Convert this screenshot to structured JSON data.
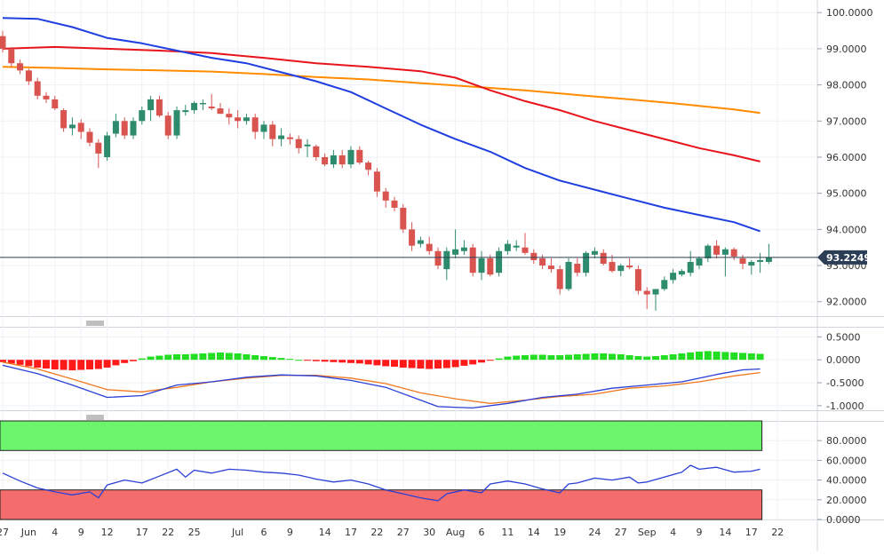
{
  "price_panel": {
    "y_ticks": [
      "100.0000",
      "99.0000",
      "98.0000",
      "97.0000",
      "96.0000",
      "95.0000",
      "94.0000",
      "93.0000",
      "92.0000"
    ],
    "current_price": "93.2249"
  },
  "macd_panel": {
    "y_ticks": [
      "0.5000",
      "0.0000",
      "-0.5000",
      "-1.0000"
    ]
  },
  "rsi_panel": {
    "y_ticks": [
      "80.0000",
      "60.0000",
      "40.0000",
      "20.0000",
      "0.0000"
    ]
  },
  "x_axis": {
    "labels": [
      "27",
      "Jun",
      "4",
      "9",
      "12",
      "17",
      "22",
      "25",
      "Jul",
      "6",
      "9",
      "14",
      "17",
      "22",
      "27",
      "30",
      "Aug",
      "6",
      "11",
      "14",
      "19",
      "24",
      "27",
      "Sep",
      "4",
      "9",
      "14",
      "17",
      "22"
    ]
  },
  "colors": {
    "bull": "#2e8b6e",
    "bear": "#d9534f",
    "sma50": "#1f3fe0",
    "sma100": "#e8141b",
    "sma200": "#ff8c00",
    "macd_line": "#2b3fd6",
    "signal_line": "#f07820",
    "hist_pos": "#22dd22",
    "hist_neg": "#ff1a1a",
    "rsi_line": "#2b3fd6",
    "overbought_fill": "#6cf56c",
    "oversold_fill": "#f56c6c"
  },
  "chart_data": [
    {
      "type": "candlestick",
      "name": "price",
      "ylim": [
        91.6,
        100.35
      ],
      "x_labels": [
        "27",
        "Jun",
        "4",
        "9",
        "12",
        "17",
        "22",
        "25",
        "Jul",
        "6",
        "9",
        "14",
        "17",
        "22",
        "27",
        "30",
        "Aug",
        "6",
        "11",
        "14",
        "19",
        "24",
        "27",
        "Sep",
        "4",
        "9",
        "14",
        "17",
        "22"
      ],
      "ohlc": [
        [
          99.35,
          99.5,
          98.9,
          99.0
        ],
        [
          99.0,
          99.05,
          98.5,
          98.6
        ],
        [
          98.6,
          98.7,
          98.3,
          98.4
        ],
        [
          98.4,
          98.45,
          98.0,
          98.1
        ],
        [
          98.1,
          98.2,
          97.6,
          97.7
        ],
        [
          97.7,
          97.8,
          97.5,
          97.6
        ],
        [
          97.6,
          97.7,
          97.3,
          97.35
        ],
        [
          97.3,
          97.35,
          96.7,
          96.8
        ],
        [
          96.8,
          97.1,
          96.6,
          96.9
        ],
        [
          96.95,
          97.05,
          96.5,
          96.7
        ],
        [
          96.7,
          96.8,
          96.3,
          96.4
        ],
        [
          96.4,
          96.5,
          95.7,
          96.1
        ],
        [
          96.0,
          96.7,
          95.9,
          96.6
        ],
        [
          96.65,
          97.2,
          96.55,
          97.0
        ],
        [
          97.0,
          97.1,
          96.5,
          96.6
        ],
        [
          96.6,
          97.1,
          96.5,
          97.0
        ],
        [
          97.0,
          97.4,
          96.9,
          97.3
        ],
        [
          97.3,
          97.7,
          97.0,
          97.6
        ],
        [
          97.6,
          97.7,
          97.1,
          97.15
        ],
        [
          97.15,
          97.25,
          96.5,
          96.6
        ],
        [
          96.6,
          97.4,
          96.5,
          97.3
        ],
        [
          97.25,
          97.45,
          97.15,
          97.3
        ],
        [
          97.3,
          97.55,
          97.2,
          97.5
        ],
        [
          97.5,
          97.6,
          97.3,
          97.5
        ],
        [
          97.4,
          97.75,
          97.3,
          97.35
        ],
        [
          97.35,
          97.5,
          97.2,
          97.2
        ],
        [
          97.2,
          97.35,
          96.9,
          97.1
        ],
        [
          97.1,
          97.3,
          96.8,
          97.0
        ],
        [
          97.0,
          97.2,
          96.9,
          97.1
        ],
        [
          97.1,
          97.2,
          96.5,
          96.7
        ],
        [
          96.7,
          97.0,
          96.5,
          96.9
        ],
        [
          96.9,
          97.0,
          96.3,
          96.5
        ],
        [
          96.5,
          96.8,
          96.3,
          96.6
        ],
        [
          96.55,
          96.65,
          96.35,
          96.5
        ],
        [
          96.5,
          96.6,
          96.1,
          96.25
        ],
        [
          96.3,
          96.5,
          96.0,
          96.35
        ],
        [
          96.3,
          96.35,
          95.9,
          96.0
        ],
        [
          96.0,
          96.1,
          95.75,
          95.8
        ],
        [
          95.8,
          96.2,
          95.7,
          96.05
        ],
        [
          96.05,
          96.2,
          95.7,
          95.8
        ],
        [
          95.8,
          96.3,
          95.7,
          96.2
        ],
        [
          96.2,
          96.3,
          95.8,
          95.85
        ],
        [
          95.85,
          95.9,
          95.5,
          95.65
        ],
        [
          95.6,
          95.7,
          94.9,
          95.05
        ],
        [
          95.05,
          95.15,
          94.6,
          94.8
        ],
        [
          94.8,
          94.9,
          94.5,
          94.6
        ],
        [
          94.6,
          94.7,
          93.9,
          94.0
        ],
        [
          94.0,
          94.2,
          93.4,
          93.55
        ],
        [
          93.6,
          93.8,
          93.5,
          93.7
        ],
        [
          93.6,
          93.8,
          93.3,
          93.4
        ],
        [
          93.4,
          93.5,
          92.9,
          93.0
        ],
        [
          92.9,
          93.5,
          92.6,
          93.4
        ],
        [
          93.3,
          94.0,
          93.2,
          93.45
        ],
        [
          93.4,
          93.7,
          93.3,
          93.5
        ],
        [
          93.5,
          93.6,
          92.7,
          92.8
        ],
        [
          92.8,
          93.4,
          92.6,
          93.2
        ],
        [
          93.2,
          93.3,
          92.7,
          92.75
        ],
        [
          92.8,
          93.5,
          92.7,
          93.4
        ],
        [
          93.4,
          93.7,
          93.3,
          93.6
        ],
        [
          93.5,
          93.7,
          93.4,
          93.55
        ],
        [
          93.5,
          93.9,
          93.3,
          93.35
        ],
        [
          93.35,
          93.45,
          93.05,
          93.15
        ],
        [
          93.2,
          93.3,
          92.9,
          93.0
        ],
        [
          93.0,
          93.2,
          92.8,
          92.9
        ],
        [
          92.9,
          93.0,
          92.2,
          92.35
        ],
        [
          92.35,
          93.2,
          92.3,
          93.1
        ],
        [
          93.05,
          93.2,
          92.7,
          92.8
        ],
        [
          92.8,
          93.4,
          92.7,
          93.35
        ],
        [
          93.3,
          93.5,
          93.2,
          93.4
        ],
        [
          93.35,
          93.45,
          93.0,
          93.05
        ],
        [
          93.1,
          93.3,
          92.8,
          92.85
        ],
        [
          92.85,
          93.05,
          92.7,
          93.0
        ],
        [
          93.0,
          93.2,
          92.9,
          92.95
        ],
        [
          92.9,
          93.0,
          92.2,
          92.3
        ],
        [
          92.3,
          92.4,
          91.8,
          92.2
        ],
        [
          92.2,
          92.3,
          91.75,
          92.35
        ],
        [
          92.35,
          92.7,
          92.3,
          92.6
        ],
        [
          92.6,
          92.9,
          92.5,
          92.8
        ],
        [
          92.75,
          92.9,
          92.7,
          92.85
        ],
        [
          92.8,
          93.4,
          92.7,
          93.1
        ],
        [
          93.0,
          93.25,
          92.9,
          93.2
        ],
        [
          93.2,
          93.6,
          93.1,
          93.55
        ],
        [
          93.55,
          93.7,
          93.2,
          93.3
        ],
        [
          93.3,
          93.5,
          92.7,
          93.45
        ],
        [
          93.45,
          93.5,
          93.15,
          93.25
        ],
        [
          93.2,
          93.3,
          92.9,
          93.05
        ],
        [
          93.0,
          93.15,
          92.75,
          93.1
        ],
        [
          93.1,
          93.35,
          92.8,
          93.15
        ],
        [
          93.1,
          93.6,
          93.05,
          93.2249
        ]
      ],
      "sma50": [
        [
          0,
          99.85
        ],
        [
          4,
          99.83
        ],
        [
          8,
          99.6
        ],
        [
          12,
          99.3
        ],
        [
          16,
          99.15
        ],
        [
          20,
          98.95
        ],
        [
          24,
          98.75
        ],
        [
          28,
          98.6
        ],
        [
          32,
          98.35
        ],
        [
          36,
          98.1
        ],
        [
          40,
          97.8
        ],
        [
          44,
          97.35
        ],
        [
          48,
          96.9
        ],
        [
          52,
          96.5
        ],
        [
          56,
          96.15
        ],
        [
          60,
          95.7
        ],
        [
          64,
          95.35
        ],
        [
          68,
          95.1
        ],
        [
          72,
          94.85
        ],
        [
          76,
          94.6
        ],
        [
          80,
          94.4
        ],
        [
          84,
          94.2
        ],
        [
          87,
          93.95
        ]
      ],
      "sma100": [
        [
          0,
          99.0
        ],
        [
          6,
          99.05
        ],
        [
          12,
          99.0
        ],
        [
          18,
          98.95
        ],
        [
          24,
          98.88
        ],
        [
          30,
          98.75
        ],
        [
          36,
          98.6
        ],
        [
          42,
          98.5
        ],
        [
          48,
          98.38
        ],
        [
          52,
          98.2
        ],
        [
          56,
          97.85
        ],
        [
          60,
          97.55
        ],
        [
          64,
          97.3
        ],
        [
          68,
          97.0
        ],
        [
          72,
          96.75
        ],
        [
          76,
          96.5
        ],
        [
          80,
          96.25
        ],
        [
          84,
          96.05
        ],
        [
          87,
          95.88
        ]
      ],
      "sma200": [
        [
          0,
          98.5
        ],
        [
          6,
          98.47
        ],
        [
          12,
          98.43
        ],
        [
          18,
          98.4
        ],
        [
          24,
          98.37
        ],
        [
          30,
          98.3
        ],
        [
          36,
          98.22
        ],
        [
          42,
          98.15
        ],
        [
          48,
          98.05
        ],
        [
          54,
          97.95
        ],
        [
          60,
          97.85
        ],
        [
          66,
          97.72
        ],
        [
          72,
          97.6
        ],
        [
          78,
          97.47
        ],
        [
          84,
          97.32
        ],
        [
          87,
          97.22
        ]
      ]
    },
    {
      "type": "bar-line",
      "name": "macd",
      "ylim": [
        -1.1,
        0.72
      ],
      "histogram": [
        -0.05,
        -0.08,
        -0.11,
        -0.14,
        -0.17,
        -0.19,
        -0.21,
        -0.22,
        -0.23,
        -0.22,
        -0.21,
        -0.2,
        -0.17,
        -0.12,
        -0.07,
        -0.03,
        0.03,
        0.07,
        0.09,
        0.11,
        0.12,
        0.12,
        0.13,
        0.14,
        0.15,
        0.16,
        0.15,
        0.14,
        0.12,
        0.1,
        0.08,
        0.06,
        0.04,
        0.02,
        0.0,
        -0.02,
        -0.03,
        -0.04,
        -0.05,
        -0.06,
        -0.07,
        -0.08,
        -0.1,
        -0.12,
        -0.14,
        -0.15,
        -0.17,
        -0.18,
        -0.19,
        -0.2,
        -0.19,
        -0.18,
        -0.16,
        -0.13,
        -0.1,
        -0.06,
        -0.02,
        0.03,
        0.07,
        0.09,
        0.1,
        0.11,
        0.11,
        0.1,
        0.1,
        0.11,
        0.12,
        0.13,
        0.14,
        0.14,
        0.13,
        0.12,
        0.1,
        0.08,
        0.07,
        0.08,
        0.1,
        0.12,
        0.14,
        0.16,
        0.18,
        0.19,
        0.18,
        0.17,
        0.16,
        0.15,
        0.14,
        0.13
      ],
      "macd": [
        [
          0,
          -0.12
        ],
        [
          4,
          -0.3
        ],
        [
          8,
          -0.55
        ],
        [
          12,
          -0.82
        ],
        [
          16,
          -0.78
        ],
        [
          20,
          -0.55
        ],
        [
          24,
          -0.48
        ],
        [
          28,
          -0.38
        ],
        [
          32,
          -0.33
        ],
        [
          36,
          -0.35
        ],
        [
          40,
          -0.45
        ],
        [
          44,
          -0.6
        ],
        [
          48,
          -0.88
        ],
        [
          50,
          -1.02
        ],
        [
          54,
          -1.05
        ],
        [
          58,
          -0.95
        ],
        [
          62,
          -0.82
        ],
        [
          66,
          -0.75
        ],
        [
          70,
          -0.62
        ],
        [
          74,
          -0.55
        ],
        [
          78,
          -0.48
        ],
        [
          82,
          -0.32
        ],
        [
          85,
          -0.22
        ],
        [
          87,
          -0.2
        ]
      ],
      "signal": [
        [
          0,
          -0.05
        ],
        [
          4,
          -0.2
        ],
        [
          8,
          -0.42
        ],
        [
          12,
          -0.65
        ],
        [
          16,
          -0.7
        ],
        [
          20,
          -0.6
        ],
        [
          24,
          -0.48
        ],
        [
          28,
          -0.4
        ],
        [
          32,
          -0.34
        ],
        [
          36,
          -0.34
        ],
        [
          40,
          -0.4
        ],
        [
          44,
          -0.52
        ],
        [
          48,
          -0.72
        ],
        [
          52,
          -0.85
        ],
        [
          56,
          -0.95
        ],
        [
          60,
          -0.88
        ],
        [
          64,
          -0.8
        ],
        [
          68,
          -0.75
        ],
        [
          72,
          -0.62
        ],
        [
          76,
          -0.57
        ],
        [
          80,
          -0.48
        ],
        [
          84,
          -0.35
        ],
        [
          87,
          -0.28
        ]
      ]
    },
    {
      "type": "line",
      "name": "rsi",
      "ylim": [
        0,
        100
      ],
      "rsi": [
        [
          0,
          47
        ],
        [
          2,
          39
        ],
        [
          4,
          32
        ],
        [
          6,
          28
        ],
        [
          8,
          25
        ],
        [
          10,
          28
        ],
        [
          11,
          22
        ],
        [
          12,
          35
        ],
        [
          14,
          40
        ],
        [
          16,
          37
        ],
        [
          18,
          44
        ],
        [
          20,
          51
        ],
        [
          21,
          43
        ],
        [
          22,
          50
        ],
        [
          24,
          47
        ],
        [
          26,
          51
        ],
        [
          28,
          50
        ],
        [
          30,
          48
        ],
        [
          32,
          47
        ],
        [
          34,
          45
        ],
        [
          36,
          41
        ],
        [
          38,
          38
        ],
        [
          40,
          40
        ],
        [
          42,
          36
        ],
        [
          44,
          30
        ],
        [
          46,
          26
        ],
        [
          48,
          22
        ],
        [
          50,
          19
        ],
        [
          51,
          26
        ],
        [
          53,
          30
        ],
        [
          55,
          27
        ],
        [
          56,
          36
        ],
        [
          58,
          39
        ],
        [
          60,
          36
        ],
        [
          62,
          31
        ],
        [
          64,
          27
        ],
        [
          65,
          36
        ],
        [
          66,
          37
        ],
        [
          68,
          42
        ],
        [
          70,
          40
        ],
        [
          72,
          43
        ],
        [
          73,
          37
        ],
        [
          74,
          38
        ],
        [
          76,
          43
        ],
        [
          78,
          48
        ],
        [
          79,
          55
        ],
        [
          80,
          51
        ],
        [
          82,
          53
        ],
        [
          84,
          48
        ],
        [
          86,
          49
        ],
        [
          87,
          51
        ]
      ],
      "overbought": 70,
      "oversold": 30
    }
  ]
}
